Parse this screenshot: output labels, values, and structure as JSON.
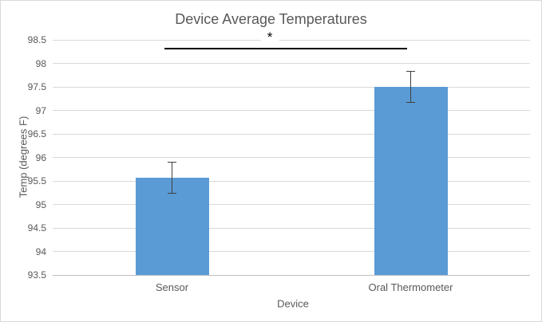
{
  "chart_data": {
    "type": "bar",
    "title": "Device Average Temperatures",
    "xlabel": "Device",
    "ylabel": "Temp (degrees F)",
    "categories": [
      "Sensor",
      "Oral Thermometer"
    ],
    "values": [
      95.56,
      97.5
    ],
    "error_bars": [
      0.33,
      0.33
    ],
    "ylim": [
      93.5,
      98.5
    ],
    "ytick_step": 0.5,
    "ytick_labels": [
      "93.5",
      "94",
      "94.5",
      "95",
      "95.5",
      "96",
      "96.5",
      "97",
      "97.5",
      "98",
      "98.5"
    ],
    "grid": true,
    "legend": false,
    "annotation": {
      "label": "*",
      "y": 98.32,
      "from_category": "Sensor",
      "to_category": "Oral Thermometer"
    },
    "colors": {
      "bar_fill": "#5B9BD5",
      "text": "#595959",
      "gridline": "#D9D9D9",
      "axis_line": "#BFBFBF",
      "error_bar": "#404040",
      "significance_line": "#000000",
      "chart_border": "#D9D9D9",
      "background": "#FFFFFF"
    }
  }
}
